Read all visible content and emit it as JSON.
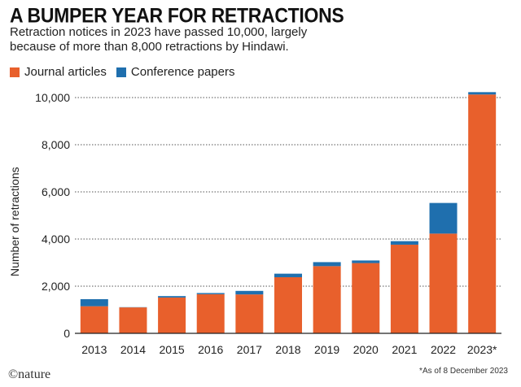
{
  "chart_data": {
    "type": "bar",
    "stacked": true,
    "title": "A BUMPER YEAR FOR RETRACTIONS",
    "subtitle": "Retraction notices in 2023 have passed 10,000, largely because of more than 8,000 retractions by Hindawi.",
    "xlabel": "",
    "ylabel": "Number of retractions",
    "ylim": [
      0,
      10000
    ],
    "yticks": [
      0,
      2000,
      4000,
      6000,
      8000,
      10000
    ],
    "ytick_labels": [
      "0",
      "2,000",
      "4,000",
      "6,000",
      "8,000",
      "10,000"
    ],
    "grid": true,
    "legend_position": "top-left",
    "categories": [
      "2013",
      "2014",
      "2015",
      "2016",
      "2017",
      "2018",
      "2019",
      "2020",
      "2021",
      "2022",
      "2023*"
    ],
    "series": [
      {
        "name": "Journal articles",
        "color": "#e8602c",
        "values": [
          1150,
          1100,
          1520,
          1660,
          1650,
          2380,
          2850,
          2980,
          3760,
          4230,
          10130
        ]
      },
      {
        "name": "Conference papers",
        "color": "#1f6fae",
        "values": [
          300,
          10,
          60,
          50,
          150,
          150,
          170,
          110,
          150,
          1300,
          100
        ]
      }
    ],
    "footnote": "*As of 8 December 2023",
    "source": "©nature"
  }
}
